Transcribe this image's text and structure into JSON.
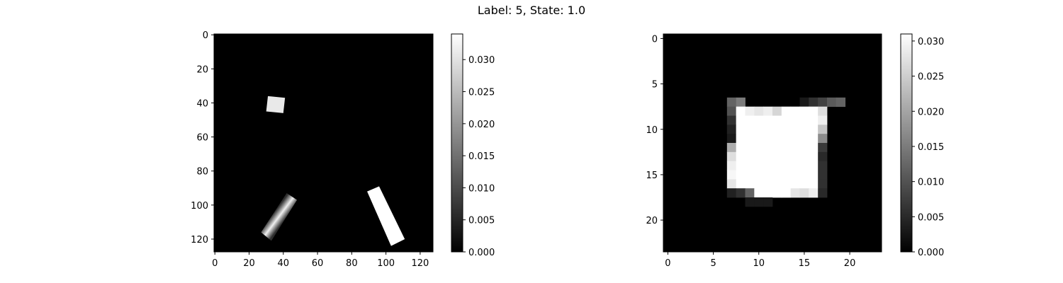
{
  "title": "Label: 5, State: 1.0",
  "chart_data": [
    {
      "type": "heatmap",
      "colormap": "gray",
      "size": [
        128,
        128
      ],
      "xlim": [
        -0.5,
        127.5
      ],
      "ylim": [
        127.5,
        -0.5
      ],
      "xticks": [
        0,
        20,
        40,
        60,
        80,
        100,
        120
      ],
      "yticks": [
        0,
        20,
        40,
        60,
        80,
        100,
        120
      ],
      "colorbar": {
        "min": 0.0,
        "max": 0.034,
        "ticks": [
          "0.000",
          "0.005",
          "0.010",
          "0.015",
          "0.020",
          "0.025",
          "0.030"
        ]
      },
      "shapes": [
        {
          "kind": "quad",
          "value": 0.031,
          "corners": [
            [
              31,
              36
            ],
            [
              41,
              37
            ],
            [
              40,
              46
            ],
            [
              30,
              45
            ]
          ]
        },
        {
          "kind": "quad",
          "value": 0.034,
          "corners": [
            [
              89,
              92
            ],
            [
              96,
              89
            ],
            [
              111,
              120
            ],
            [
              103,
              124
            ]
          ]
        },
        {
          "kind": "gradient-quad",
          "value_min": 0.006,
          "value_max": 0.032,
          "corners": [
            [
              27,
              116
            ],
            [
              42,
              93
            ],
            [
              48,
              97
            ],
            [
              33,
              121
            ]
          ]
        }
      ]
    },
    {
      "type": "heatmap",
      "colormap": "gray",
      "size": [
        24,
        24
      ],
      "xlim": [
        -0.5,
        23.5
      ],
      "ylim": [
        23.5,
        -0.5
      ],
      "xticks": [
        0,
        5,
        10,
        15,
        20
      ],
      "yticks": [
        0,
        5,
        10,
        15,
        20
      ],
      "colorbar": {
        "min": 0.0,
        "max": 0.031,
        "ticks": [
          "0.000",
          "0.005",
          "0.010",
          "0.015",
          "0.020",
          "0.025",
          "0.030"
        ]
      },
      "cells": [
        [
          7,
          [
            0,
            0,
            0,
            0,
            0,
            0,
            0,
            0.012,
            0.015,
            0,
            0,
            0,
            0,
            0,
            0,
            0.003,
            0.006,
            0.008,
            0.011,
            0.012,
            0,
            0,
            0,
            0
          ]
        ],
        [
          8,
          [
            0,
            0,
            0,
            0,
            0,
            0,
            0,
            0.01,
            0.031,
            0.029,
            0.028,
            0.029,
            0.026,
            0.031,
            0.031,
            0.031,
            0.031,
            0.027,
            0,
            0,
            0,
            0,
            0,
            0
          ]
        ],
        [
          9,
          [
            0,
            0,
            0,
            0,
            0,
            0,
            0,
            0.006,
            0.031,
            0.031,
            0.031,
            0.031,
            0.031,
            0.031,
            0.031,
            0.031,
            0.031,
            0.029,
            0,
            0,
            0,
            0,
            0,
            0
          ]
        ],
        [
          10,
          [
            0,
            0,
            0,
            0,
            0,
            0,
            0,
            0.004,
            0.031,
            0.031,
            0.031,
            0.031,
            0.031,
            0.031,
            0.031,
            0.031,
            0.031,
            0.024,
            0,
            0,
            0,
            0,
            0,
            0
          ]
        ],
        [
          11,
          [
            0,
            0,
            0,
            0,
            0,
            0,
            0,
            0.003,
            0.031,
            0.031,
            0.031,
            0.031,
            0.031,
            0.031,
            0.031,
            0.031,
            0.031,
            0.017,
            0,
            0,
            0,
            0,
            0,
            0
          ]
        ],
        [
          12,
          [
            0,
            0,
            0,
            0,
            0,
            0,
            0,
            0.021,
            0.031,
            0.031,
            0.031,
            0.031,
            0.031,
            0.031,
            0.031,
            0.031,
            0.031,
            0.007,
            0,
            0,
            0,
            0,
            0,
            0
          ]
        ],
        [
          13,
          [
            0,
            0,
            0,
            0,
            0,
            0,
            0,
            0.027,
            0.031,
            0.031,
            0.031,
            0.031,
            0.031,
            0.031,
            0.031,
            0.031,
            0.031,
            0.005,
            0,
            0,
            0,
            0,
            0,
            0
          ]
        ],
        [
          14,
          [
            0,
            0,
            0,
            0,
            0,
            0,
            0,
            0.029,
            0.031,
            0.031,
            0.031,
            0.031,
            0.031,
            0.031,
            0.031,
            0.031,
            0.031,
            0.006,
            0,
            0,
            0,
            0,
            0,
            0
          ]
        ],
        [
          15,
          [
            0,
            0,
            0,
            0,
            0,
            0,
            0,
            0.03,
            0.031,
            0.031,
            0.031,
            0.031,
            0.031,
            0.031,
            0.031,
            0.031,
            0.031,
            0.006,
            0,
            0,
            0,
            0,
            0,
            0
          ]
        ],
        [
          16,
          [
            0,
            0,
            0,
            0,
            0,
            0,
            0,
            0.028,
            0.031,
            0.031,
            0.031,
            0.031,
            0.031,
            0.031,
            0.031,
            0.031,
            0.031,
            0.006,
            0,
            0,
            0,
            0,
            0,
            0
          ]
        ],
        [
          17,
          [
            0,
            0,
            0,
            0,
            0,
            0,
            0,
            0.004,
            0.006,
            0.012,
            0.031,
            0.031,
            0.031,
            0.031,
            0.028,
            0.027,
            0.029,
            0.005,
            0,
            0,
            0,
            0,
            0,
            0
          ]
        ],
        [
          18,
          [
            0,
            0,
            0,
            0,
            0,
            0,
            0,
            0,
            0,
            0.003,
            0.003,
            0.003,
            0,
            0,
            0,
            0,
            0,
            0,
            0,
            0,
            0,
            0,
            0,
            0
          ]
        ]
      ]
    }
  ]
}
